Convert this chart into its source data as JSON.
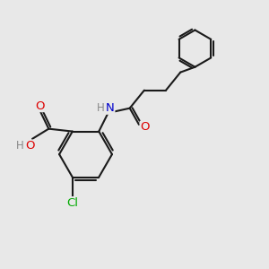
{
  "bg_color": "#e8e8e8",
  "bond_color": "#1a1a1a",
  "bond_width": 1.5,
  "atom_colors": {
    "O": "#dd0000",
    "N": "#0000cc",
    "Cl": "#00aa00",
    "H": "#888888"
  },
  "font_size": 9.5,
  "font_size_small": 8.5,
  "xlim": [
    0,
    10
  ],
  "ylim": [
    0,
    10
  ]
}
